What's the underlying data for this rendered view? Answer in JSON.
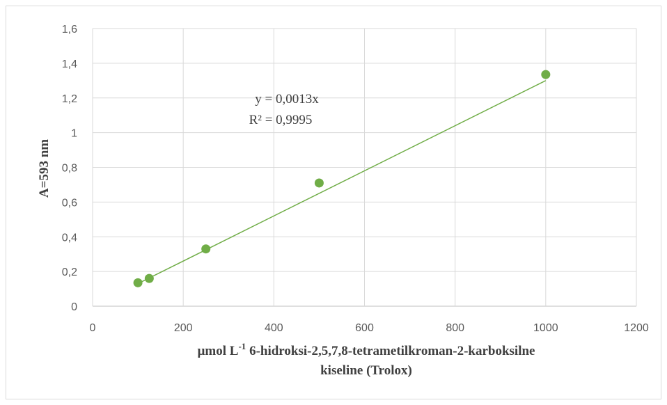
{
  "chart_data": {
    "type": "scatter",
    "title": "",
    "xlabel_prefix": "µmol L",
    "xlabel_superscript": "-1",
    "xlabel_line1_rest": " 6-hidroksi-2,5,7,8-tetrametilkroman-2-karboksilne",
    "xlabel_line2": "kiseline (Trolox)",
    "ylabel": "A=593 nm",
    "xlim": [
      0,
      1200
    ],
    "ylim": [
      0,
      1.6
    ],
    "x_ticks": [
      "0",
      "200",
      "400",
      "600",
      "800",
      "1000",
      "1200"
    ],
    "y_ticks": [
      "0",
      "0,2",
      "0,4",
      "0,6",
      "0,8",
      "1",
      "1,2",
      "1,4",
      "1,6"
    ],
    "grid": true,
    "series": [
      {
        "x": [
          100,
          125,
          250,
          500,
          1000
        ],
        "y": [
          0.135,
          0.16,
          0.33,
          0.71,
          1.335
        ],
        "color": "#70ad47"
      }
    ],
    "trendline": {
      "slope": 0.0013,
      "x_range": [
        100,
        1000
      ],
      "color": "#70ad47",
      "equation": "y = 0,0013x",
      "r_squared": "R² = 0,9995"
    }
  }
}
